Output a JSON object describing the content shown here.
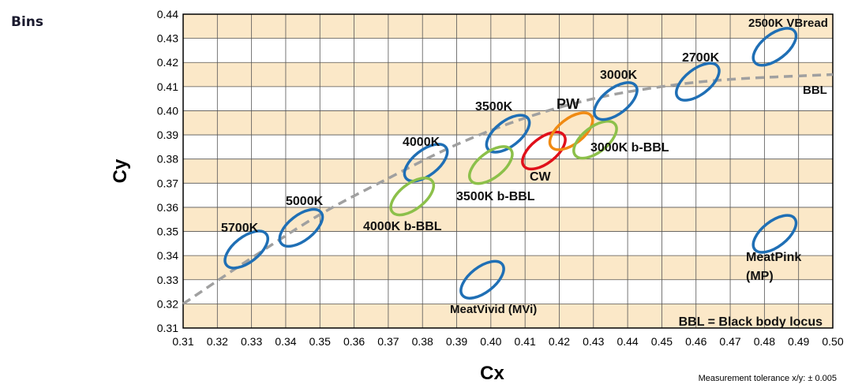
{
  "side_title": "Bins",
  "chart_data": {
    "type": "scatter",
    "title": "",
    "xlabel": "Cx",
    "ylabel": "Cy",
    "xlim": [
      0.31,
      0.5
    ],
    "ylim": [
      0.31,
      0.44
    ],
    "x_ticks": [
      "0.31",
      "0.32",
      "0.33",
      "0.34",
      "0.35",
      "0.36",
      "0.37",
      "0.38",
      "0.39",
      "0.40",
      "0.41",
      "0.42",
      "0.43",
      "0.44",
      "0.45",
      "0.46",
      "0.47",
      "0.48",
      "0.49",
      "0.50"
    ],
    "y_ticks": [
      "0.31",
      "0.32",
      "0.33",
      "0.34",
      "0.35",
      "0.36",
      "0.37",
      "0.38",
      "0.39",
      "0.40",
      "0.41",
      "0.42",
      "0.43",
      "0.44"
    ],
    "grid": true,
    "band_color": "#fbe8c8",
    "bbl": {
      "label": "BBL",
      "color": "#a0a0a0",
      "points": [
        [
          0.31,
          0.32
        ],
        [
          0.33,
          0.339
        ],
        [
          0.35,
          0.357
        ],
        [
          0.37,
          0.372
        ],
        [
          0.39,
          0.386
        ],
        [
          0.41,
          0.397
        ],
        [
          0.43,
          0.405
        ],
        [
          0.45,
          0.41
        ],
        [
          0.47,
          0.413
        ],
        [
          0.5,
          0.415
        ]
      ]
    },
    "bins": [
      {
        "name": "5700K",
        "cx": 0.3285,
        "cy": 0.3425,
        "color": "#1f6fb5",
        "label": "5700K"
      },
      {
        "name": "5000K",
        "cx": 0.3445,
        "cy": 0.3515,
        "color": "#1f6fb5",
        "label": "5000K"
      },
      {
        "name": "4000K",
        "cx": 0.381,
        "cy": 0.3785,
        "color": "#1f6fb5",
        "label": "4000K"
      },
      {
        "name": "4000K b-BBL",
        "cx": 0.377,
        "cy": 0.3645,
        "color": "#8cc04a",
        "label": "4000K b-BBL"
      },
      {
        "name": "3500K",
        "cx": 0.405,
        "cy": 0.3905,
        "color": "#1f6fb5",
        "label": "3500K"
      },
      {
        "name": "3500K b-BBL",
        "cx": 0.4,
        "cy": 0.3775,
        "color": "#8cc04a",
        "label": "3500K b-BBL"
      },
      {
        "name": "CW",
        "cx": 0.4155,
        "cy": 0.3835,
        "color": "#e0101a",
        "label": "CW"
      },
      {
        "name": "PW",
        "cx": 0.4235,
        "cy": 0.3915,
        "color": "#f08a12",
        "label": "PW"
      },
      {
        "name": "3000K b-BBL",
        "cx": 0.4305,
        "cy": 0.388,
        "color": "#8cc04a",
        "label": "3000K b-BBL"
      },
      {
        "name": "3000K",
        "cx": 0.4365,
        "cy": 0.404,
        "color": "#1f6fb5",
        "label": "3000K"
      },
      {
        "name": "2700K",
        "cx": 0.4605,
        "cy": 0.412,
        "color": "#1f6fb5",
        "label": "2700K"
      },
      {
        "name": "2500K VBread",
        "cx": 0.483,
        "cy": 0.4265,
        "color": "#1f6fb5",
        "label": "2500K VBread"
      },
      {
        "name": "MeatVivid (MVi)",
        "cx": 0.3975,
        "cy": 0.33,
        "color": "#1f6fb5",
        "label": "MeatVivid (MVi)"
      },
      {
        "name": "MeatPink (MP)",
        "cx": 0.483,
        "cy": 0.349,
        "color": "#1f6fb5",
        "label": "MeatPink (MP)"
      }
    ],
    "legend_note": "BBL = Black body locus",
    "tolerance_note": "Measurement tolerance x/y: ± 0.005"
  }
}
